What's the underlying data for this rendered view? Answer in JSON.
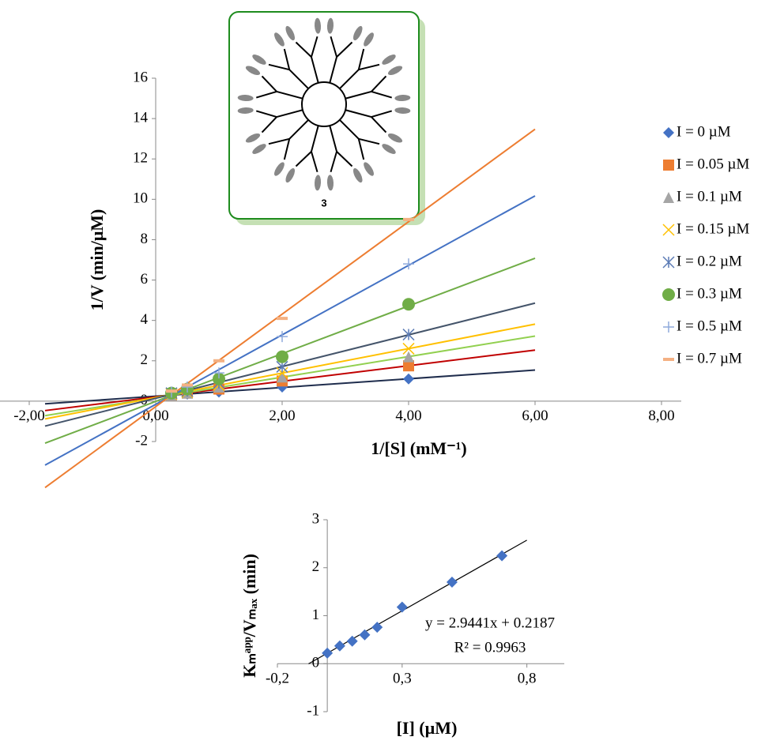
{
  "chart_data": [
    {
      "type": "scatter",
      "xlabel": "1/[S] (mM⁻¹)",
      "ylabel": "1/V (min/μM)",
      "annotations": [
        "3"
      ],
      "x": [
        0.25,
        0.5,
        1,
        2,
        4
      ],
      "xlim": [
        -2,
        8
      ],
      "ylim": [
        -2,
        16
      ],
      "xticks": [
        {
          "value": -2,
          "label": "-2,00"
        },
        {
          "value": 0,
          "label": "0,00"
        },
        {
          "value": 2,
          "label": "2,00"
        },
        {
          "value": 4,
          "label": "4,00"
        },
        {
          "value": 6,
          "label": "6,00"
        },
        {
          "value": 8,
          "label": "8,00"
        }
      ],
      "yticks": [
        -2,
        0,
        2,
        4,
        6,
        8,
        10,
        12,
        14,
        16
      ],
      "trendline_x": [
        -1.75,
        6
      ],
      "legend": "right",
      "series": [
        {
          "name": "I = 0 µM",
          "color": "#4472c4",
          "marker": "diamond",
          "trendline_color": "#1f2d4d",
          "values": [
            0.3,
            0.35,
            0.45,
            0.7,
            1.1
          ]
        },
        {
          "name": "I = 0.05 µM",
          "color": "#ed7d31",
          "marker": "square",
          "trendline_color": "#c00000",
          "values": [
            0.3,
            0.4,
            0.6,
            1.0,
            1.75
          ]
        },
        {
          "name": "I = 0.1 µM",
          "color": "#a5a5a5",
          "marker": "triangle",
          "trendline_color": "#92d050",
          "values": [
            0.3,
            0.4,
            0.7,
            1.2,
            2.2
          ]
        },
        {
          "name": "I = 0.15 µM",
          "color": "#ffc000",
          "marker": "x",
          "trendline_color": "#ffc000",
          "values": [
            0.35,
            0.45,
            0.8,
            1.4,
            2.6
          ]
        },
        {
          "name": "I = 0.2 µM",
          "color": "#5b7bb5",
          "marker": "star",
          "trendline_color": "#44546a",
          "values": [
            0.4,
            0.5,
            0.9,
            1.7,
            3.3
          ]
        },
        {
          "name": "I = 0.3 µM",
          "color": "#70ad47",
          "marker": "circle",
          "trendline_color": "#70ad47",
          "values": [
            0.4,
            0.6,
            1.1,
            2.2,
            4.8
          ]
        },
        {
          "name": "I = 0.5 µM",
          "color": "#8faadc",
          "marker": "plus",
          "trendline_color": "#4472c4",
          "values": [
            0.45,
            0.7,
            1.4,
            3.2,
            6.8
          ]
        },
        {
          "name": "I = 0.7 µM",
          "color": "#f4b183",
          "marker": "dash",
          "trendline_color": "#ed7d31",
          "values": [
            0.5,
            0.8,
            2.0,
            4.1,
            9.0
          ]
        }
      ]
    },
    {
      "type": "scatter",
      "xlabel": "[I] (µM)",
      "ylabel": "Kₘᵃᵖᵖ/Vₘₐₓ (min)",
      "x": [
        0,
        0.05,
        0.1,
        0.15,
        0.2,
        0.3,
        0.5,
        0.7
      ],
      "xlim": [
        -0.2,
        0.95
      ],
      "ylim": [
        -1,
        3
      ],
      "xticks": [
        {
          "value": -0.2,
          "label": "-0,2"
        },
        {
          "value": 0.3,
          "label": "0,3"
        },
        {
          "value": 0.8,
          "label": "0,8"
        }
      ],
      "yticks": [
        -1,
        0,
        1,
        2,
        3
      ],
      "series": [
        {
          "color": "#4472c4",
          "marker": "diamond",
          "values": [
            0.22,
            0.37,
            0.47,
            0.6,
            0.76,
            1.18,
            1.7,
            2.25
          ]
        }
      ],
      "trendline": {
        "slope": 2.9441,
        "intercept": 0.2187,
        "equation": "y = 2.9441x + 0.2187",
        "r2": "R² = 0.9963",
        "color": "#000000",
        "x": [
          -0.075,
          0.8
        ]
      }
    }
  ]
}
